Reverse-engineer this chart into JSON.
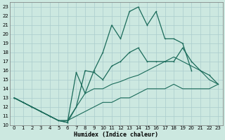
{
  "xlabel": "Humidex (Indice chaleur)",
  "background_color": "#cce8e0",
  "grid_color": "#aacccc",
  "line_color": "#1a6b5a",
  "xlim": [
    -0.5,
    23.5
  ],
  "ylim": [
    10,
    23.5
  ],
  "xticks": [
    0,
    1,
    2,
    3,
    4,
    5,
    6,
    7,
    8,
    9,
    10,
    11,
    12,
    13,
    14,
    15,
    16,
    17,
    18,
    19,
    20,
    21,
    22,
    23
  ],
  "yticks": [
    10,
    11,
    12,
    13,
    14,
    15,
    16,
    17,
    18,
    19,
    20,
    21,
    22,
    23
  ],
  "line1_x": [
    0,
    1,
    2,
    3,
    4,
    5,
    6,
    7,
    8,
    9,
    10,
    11,
    12,
    13,
    14,
    15,
    16,
    17,
    18,
    19,
    20
  ],
  "line1_y": [
    13,
    12.5,
    12,
    11.5,
    11,
    10.5,
    10.3,
    15.8,
    13.5,
    16,
    18,
    21,
    19.5,
    22.5,
    23,
    21,
    22.5,
    19.5,
    19.5,
    19,
    16
  ],
  "line2_x": [
    0,
    1,
    2,
    3,
    4,
    5,
    6,
    7,
    8,
    9,
    10,
    11,
    12,
    13,
    14,
    15,
    16,
    17,
    18,
    19,
    20,
    21,
    22,
    23
  ],
  "line2_y": [
    13,
    12.5,
    12,
    11.5,
    11,
    10.5,
    10.3,
    12,
    16,
    15.8,
    15,
    16.5,
    17,
    18,
    18.5,
    17,
    17,
    17,
    17,
    18.5,
    17,
    16,
    15.5,
    14.5
  ],
  "line3_x": [
    0,
    2,
    3,
    4,
    5,
    6,
    7,
    8,
    9,
    10,
    11,
    12,
    13,
    14,
    15,
    16,
    17,
    18,
    19,
    20,
    21,
    22,
    23
  ],
  "line3_y": [
    13,
    12,
    11.5,
    11,
    10.5,
    10.5,
    12,
    13.5,
    14,
    14,
    14.5,
    14.8,
    15.2,
    15.5,
    16,
    16.5,
    17,
    17.5,
    17,
    16.5,
    16,
    15,
    14.5
  ],
  "line4_x": [
    0,
    2,
    3,
    4,
    5,
    6,
    7,
    8,
    9,
    10,
    11,
    12,
    13,
    14,
    15,
    16,
    17,
    18,
    19,
    20,
    21,
    22,
    23
  ],
  "line4_y": [
    13,
    12,
    11.5,
    11,
    10.5,
    10.5,
    11,
    11.5,
    12,
    12.5,
    12.5,
    13,
    13,
    13.5,
    14,
    14,
    14,
    14.5,
    14,
    14,
    14,
    14,
    14.5
  ]
}
